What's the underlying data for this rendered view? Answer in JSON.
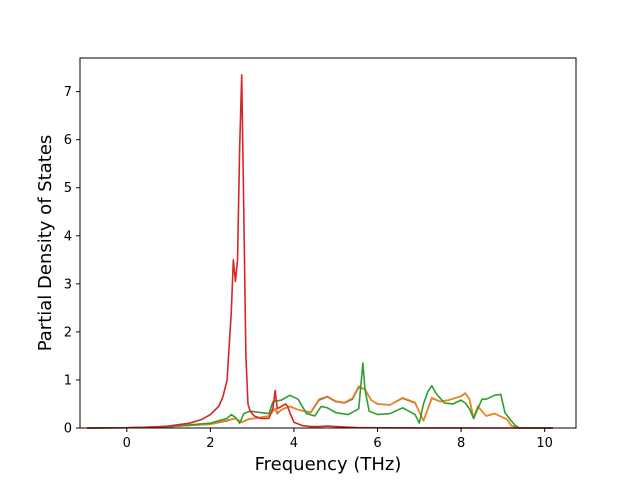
{
  "chart_data": {
    "type": "line",
    "title": "",
    "xlabel": "Frequency (THz)",
    "ylabel": "Partial Density of States",
    "xlim": [
      -1.12,
      10.75
    ],
    "ylim": [
      0,
      7.7
    ],
    "xticks": [
      0,
      2,
      4,
      6,
      8,
      10
    ],
    "yticks": [
      0,
      1,
      2,
      3,
      4,
      5,
      6,
      7
    ],
    "grid": false,
    "legend": "none",
    "series": [
      {
        "color": "#1f77b4",
        "x": [
          -0.95,
          0.0,
          1.0,
          2.0,
          2.4,
          2.6,
          2.75,
          2.9,
          3.4,
          3.55,
          3.6,
          3.7,
          3.9,
          4.1,
          4.4,
          4.6,
          4.8,
          5.0,
          5.2,
          5.4,
          5.55,
          5.7,
          5.85,
          6.0,
          6.3,
          6.6,
          6.9,
          7.1,
          7.3,
          7.5,
          7.7,
          8.0,
          8.1,
          8.2,
          8.3,
          8.4,
          8.6,
          8.8,
          9.0,
          9.1,
          9.2,
          9.3,
          9.4,
          10.2
        ],
        "y": [
          0.0,
          0.005,
          0.03,
          0.08,
          0.15,
          0.2,
          0.12,
          0.18,
          0.25,
          0.4,
          0.3,
          0.38,
          0.45,
          0.38,
          0.32,
          0.58,
          0.65,
          0.55,
          0.52,
          0.6,
          0.85,
          0.8,
          0.58,
          0.5,
          0.48,
          0.62,
          0.52,
          0.15,
          0.62,
          0.55,
          0.58,
          0.66,
          0.72,
          0.6,
          0.2,
          0.45,
          0.25,
          0.3,
          0.22,
          0.18,
          0.05,
          0.02,
          0.0,
          0.0
        ]
      },
      {
        "color": "#ff7f0e",
        "x": [
          -0.95,
          0.0,
          1.0,
          2.0,
          2.4,
          2.6,
          2.75,
          2.9,
          3.4,
          3.55,
          3.6,
          3.7,
          3.9,
          4.1,
          4.4,
          4.6,
          4.8,
          5.0,
          5.2,
          5.4,
          5.55,
          5.7,
          5.85,
          6.0,
          6.3,
          6.6,
          6.9,
          7.1,
          7.3,
          7.5,
          7.7,
          8.0,
          8.1,
          8.2,
          8.3,
          8.4,
          8.6,
          8.8,
          9.0,
          9.1,
          9.2,
          9.3,
          9.4,
          10.2
        ],
        "y": [
          0.0,
          0.005,
          0.03,
          0.08,
          0.16,
          0.2,
          0.12,
          0.18,
          0.25,
          0.4,
          0.32,
          0.38,
          0.45,
          0.38,
          0.33,
          0.6,
          0.66,
          0.56,
          0.53,
          0.62,
          0.87,
          0.8,
          0.58,
          0.5,
          0.48,
          0.63,
          0.53,
          0.15,
          0.63,
          0.55,
          0.58,
          0.66,
          0.73,
          0.6,
          0.2,
          0.45,
          0.25,
          0.3,
          0.22,
          0.18,
          0.05,
          0.02,
          0.0,
          0.0
        ]
      },
      {
        "color": "#2ca02c",
        "x": [
          -0.95,
          0.0,
          1.0,
          2.0,
          2.4,
          2.5,
          2.6,
          2.7,
          2.8,
          2.95,
          3.4,
          3.5,
          3.7,
          3.9,
          4.1,
          4.3,
          4.5,
          4.65,
          4.8,
          5.0,
          5.3,
          5.55,
          5.65,
          5.7,
          5.8,
          6.0,
          6.3,
          6.6,
          6.9,
          7.0,
          7.1,
          7.2,
          7.3,
          7.4,
          7.6,
          7.8,
          8.0,
          8.1,
          8.2,
          8.3,
          8.5,
          8.6,
          8.8,
          8.95,
          9.05,
          9.2,
          9.3,
          9.4,
          10.2
        ],
        "y": [
          0.0,
          0.005,
          0.03,
          0.1,
          0.2,
          0.28,
          0.22,
          0.1,
          0.3,
          0.35,
          0.3,
          0.55,
          0.58,
          0.68,
          0.6,
          0.3,
          0.25,
          0.45,
          0.42,
          0.32,
          0.28,
          0.4,
          1.35,
          0.8,
          0.35,
          0.28,
          0.3,
          0.42,
          0.28,
          0.1,
          0.5,
          0.75,
          0.88,
          0.72,
          0.52,
          0.5,
          0.58,
          0.52,
          0.4,
          0.2,
          0.6,
          0.6,
          0.68,
          0.7,
          0.32,
          0.15,
          0.05,
          0.0,
          0.0
        ]
      },
      {
        "color": "#d62728",
        "x": [
          -0.95,
          0.0,
          0.5,
          1.0,
          1.5,
          1.8,
          2.0,
          2.2,
          2.3,
          2.4,
          2.45,
          2.5,
          2.55,
          2.6,
          2.65,
          2.7,
          2.75,
          2.8,
          2.85,
          2.9,
          2.95,
          3.05,
          3.2,
          3.4,
          3.5,
          3.55,
          3.6,
          3.7,
          3.8,
          3.85,
          3.9,
          4.0,
          4.2,
          4.4,
          4.6,
          4.8,
          5.0,
          5.5,
          6.0,
          7.0,
          8.0,
          9.0,
          10.2
        ],
        "y": [
          0.0,
          0.005,
          0.015,
          0.04,
          0.1,
          0.18,
          0.28,
          0.45,
          0.65,
          1.0,
          1.7,
          2.4,
          3.5,
          3.05,
          3.5,
          5.8,
          7.35,
          4.5,
          1.5,
          0.5,
          0.35,
          0.25,
          0.2,
          0.2,
          0.42,
          0.78,
          0.4,
          0.45,
          0.5,
          0.45,
          0.32,
          0.12,
          0.05,
          0.03,
          0.03,
          0.04,
          0.03,
          0.01,
          0.005,
          0.002,
          0.001,
          0.0,
          0.0
        ]
      }
    ]
  }
}
